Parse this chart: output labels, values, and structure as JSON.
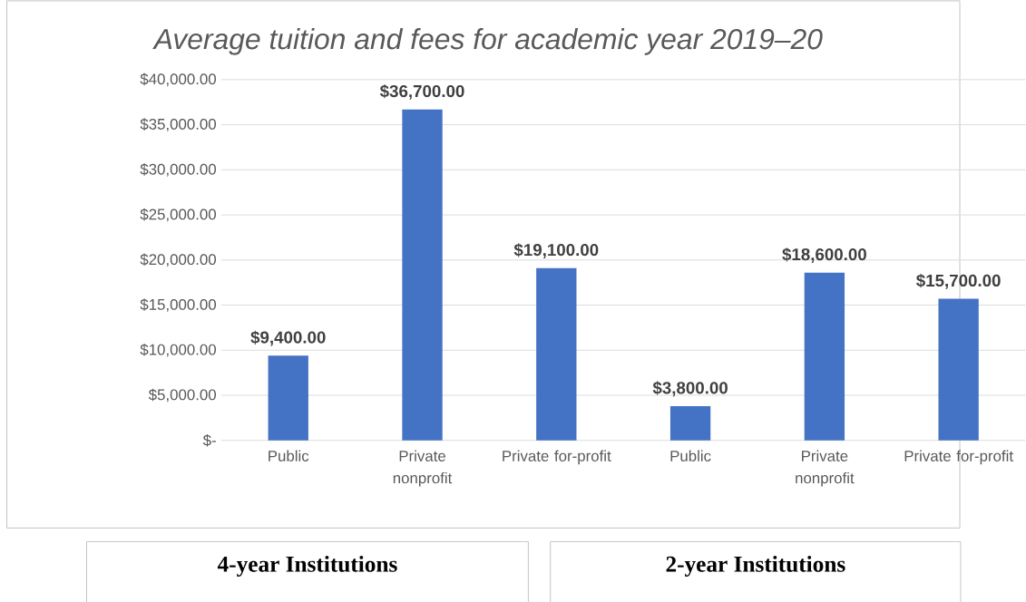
{
  "chart_data": {
    "type": "bar",
    "title": "Average tuition and fees for academic year 2019–20",
    "categories": [
      "Public",
      "Private nonprofit",
      "Private for-profit",
      "Public",
      "Private nonprofit",
      "Private for-profit"
    ],
    "values": [
      9400,
      36700,
      19100,
      3800,
      18600,
      15700
    ],
    "value_labels": [
      "$9,400.00",
      "$36,700.00",
      "$19,100.00",
      "$3,800.00",
      "$18,600.00",
      "$15,700.00"
    ],
    "color": "#4472c4",
    "ylim": [
      0,
      40000
    ],
    "yticks": [
      {
        "value": 0,
        "label": "$-"
      },
      {
        "value": 5000,
        "label": "$5,000.00"
      },
      {
        "value": 10000,
        "label": "$10,000.00"
      },
      {
        "value": 15000,
        "label": "$15,000.00"
      },
      {
        "value": 20000,
        "label": "$20,000.00"
      },
      {
        "value": 25000,
        "label": "$25,000.00"
      },
      {
        "value": 30000,
        "label": "$30,000.00"
      },
      {
        "value": 35000,
        "label": "$35,000.00"
      },
      {
        "value": 40000,
        "label": "$40,000.00"
      }
    ],
    "grid": true,
    "annotations": [
      "4-year Institutions",
      "2-year Institutions"
    ]
  }
}
